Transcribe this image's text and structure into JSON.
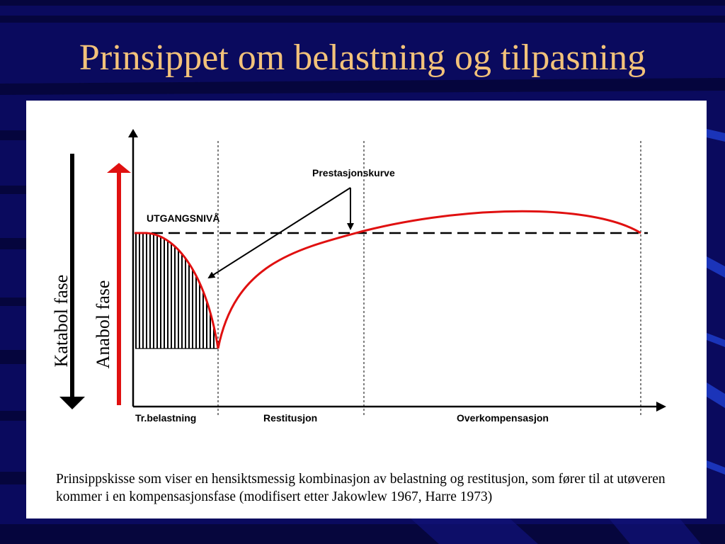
{
  "slide": {
    "title": "Prinsippet om belastning og tilpasning"
  },
  "diagram": {
    "labels": {
      "prestasjonskurve": "Prestasjonskurve",
      "utgangsniva": "UTGANGSNIVÅ",
      "katabol": "Katabol fase",
      "anabol": "Anabol fase"
    },
    "phases": [
      "Tr.belastning",
      "Restitusjon",
      "Overkompensasjon"
    ],
    "colors": {
      "curve": "#e01010",
      "anabol_arrow": "#e01010",
      "katabol_arrow": "#000000",
      "background": "#0a0a5e",
      "title": "#f2c27a"
    }
  },
  "caption": "Prinsippskisse som viser en hensiktsmessig kombinasjon av belastning og restitusjon, som fører til at utøveren kommer i en kompensasjonsfase (modifisert etter Jakowlew 1967, Harre 1973)"
}
